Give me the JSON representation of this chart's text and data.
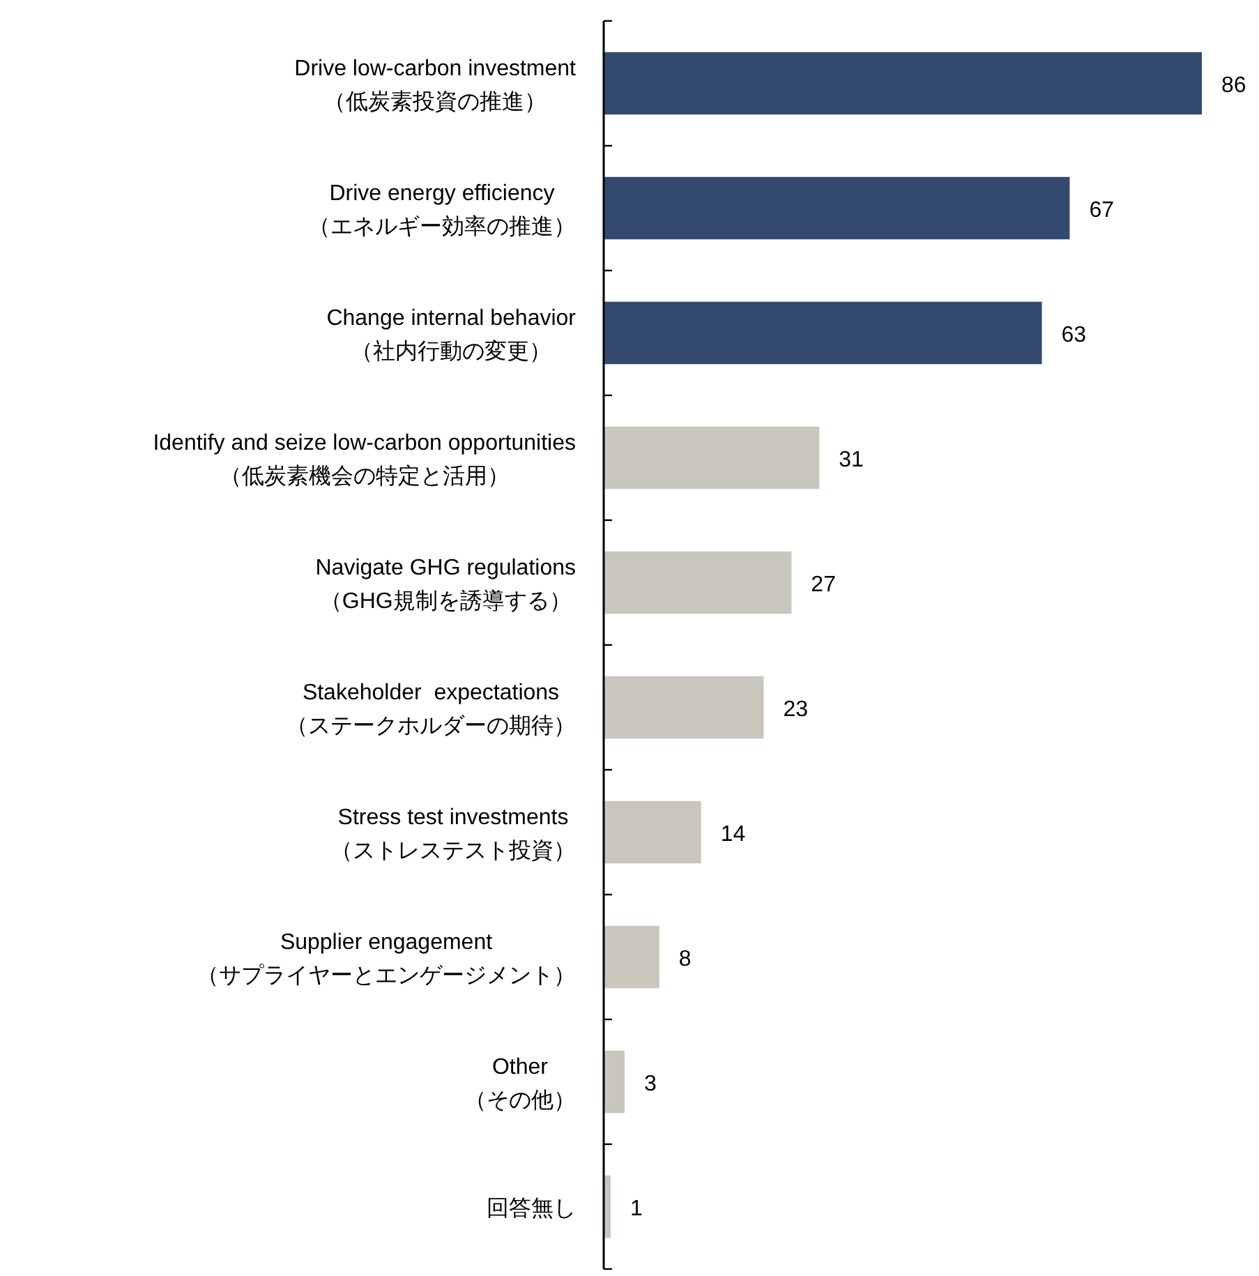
{
  "chart_data": {
    "type": "bar",
    "orientation": "horizontal",
    "categories": [
      "Drive low-carbon investment\n（低炭素投資の推進）",
      "Drive energy efficiency\n（エネルギー効率の推進）",
      "Change internal behavior\n（社内行動の変更）",
      "Identify and seize low-carbon opportunities\n（低炭素機会の特定と活用）",
      "Navigate GHG regulations\n（GHG規制を誘導する）",
      "Stakeholder  expectations\n（ステークホルダーの期待）",
      "Stress test investments\n（ストレステスト投資）",
      "Supplier engagement\n（サプライヤーとエンゲージメント）",
      "Other\n（その他）",
      "回答無し"
    ],
    "values": [
      86,
      67,
      63,
      31,
      27,
      23,
      14,
      8,
      3,
      1
    ],
    "colors": [
      "#34496f",
      "#34496f",
      "#34496f",
      "#c9c6bd",
      "#c9c6bd",
      "#c9c6bd",
      "#c9c6bd",
      "#c9c6bd",
      "#c9c6bd",
      "#c9c6bd"
    ],
    "data_labels": true
  }
}
